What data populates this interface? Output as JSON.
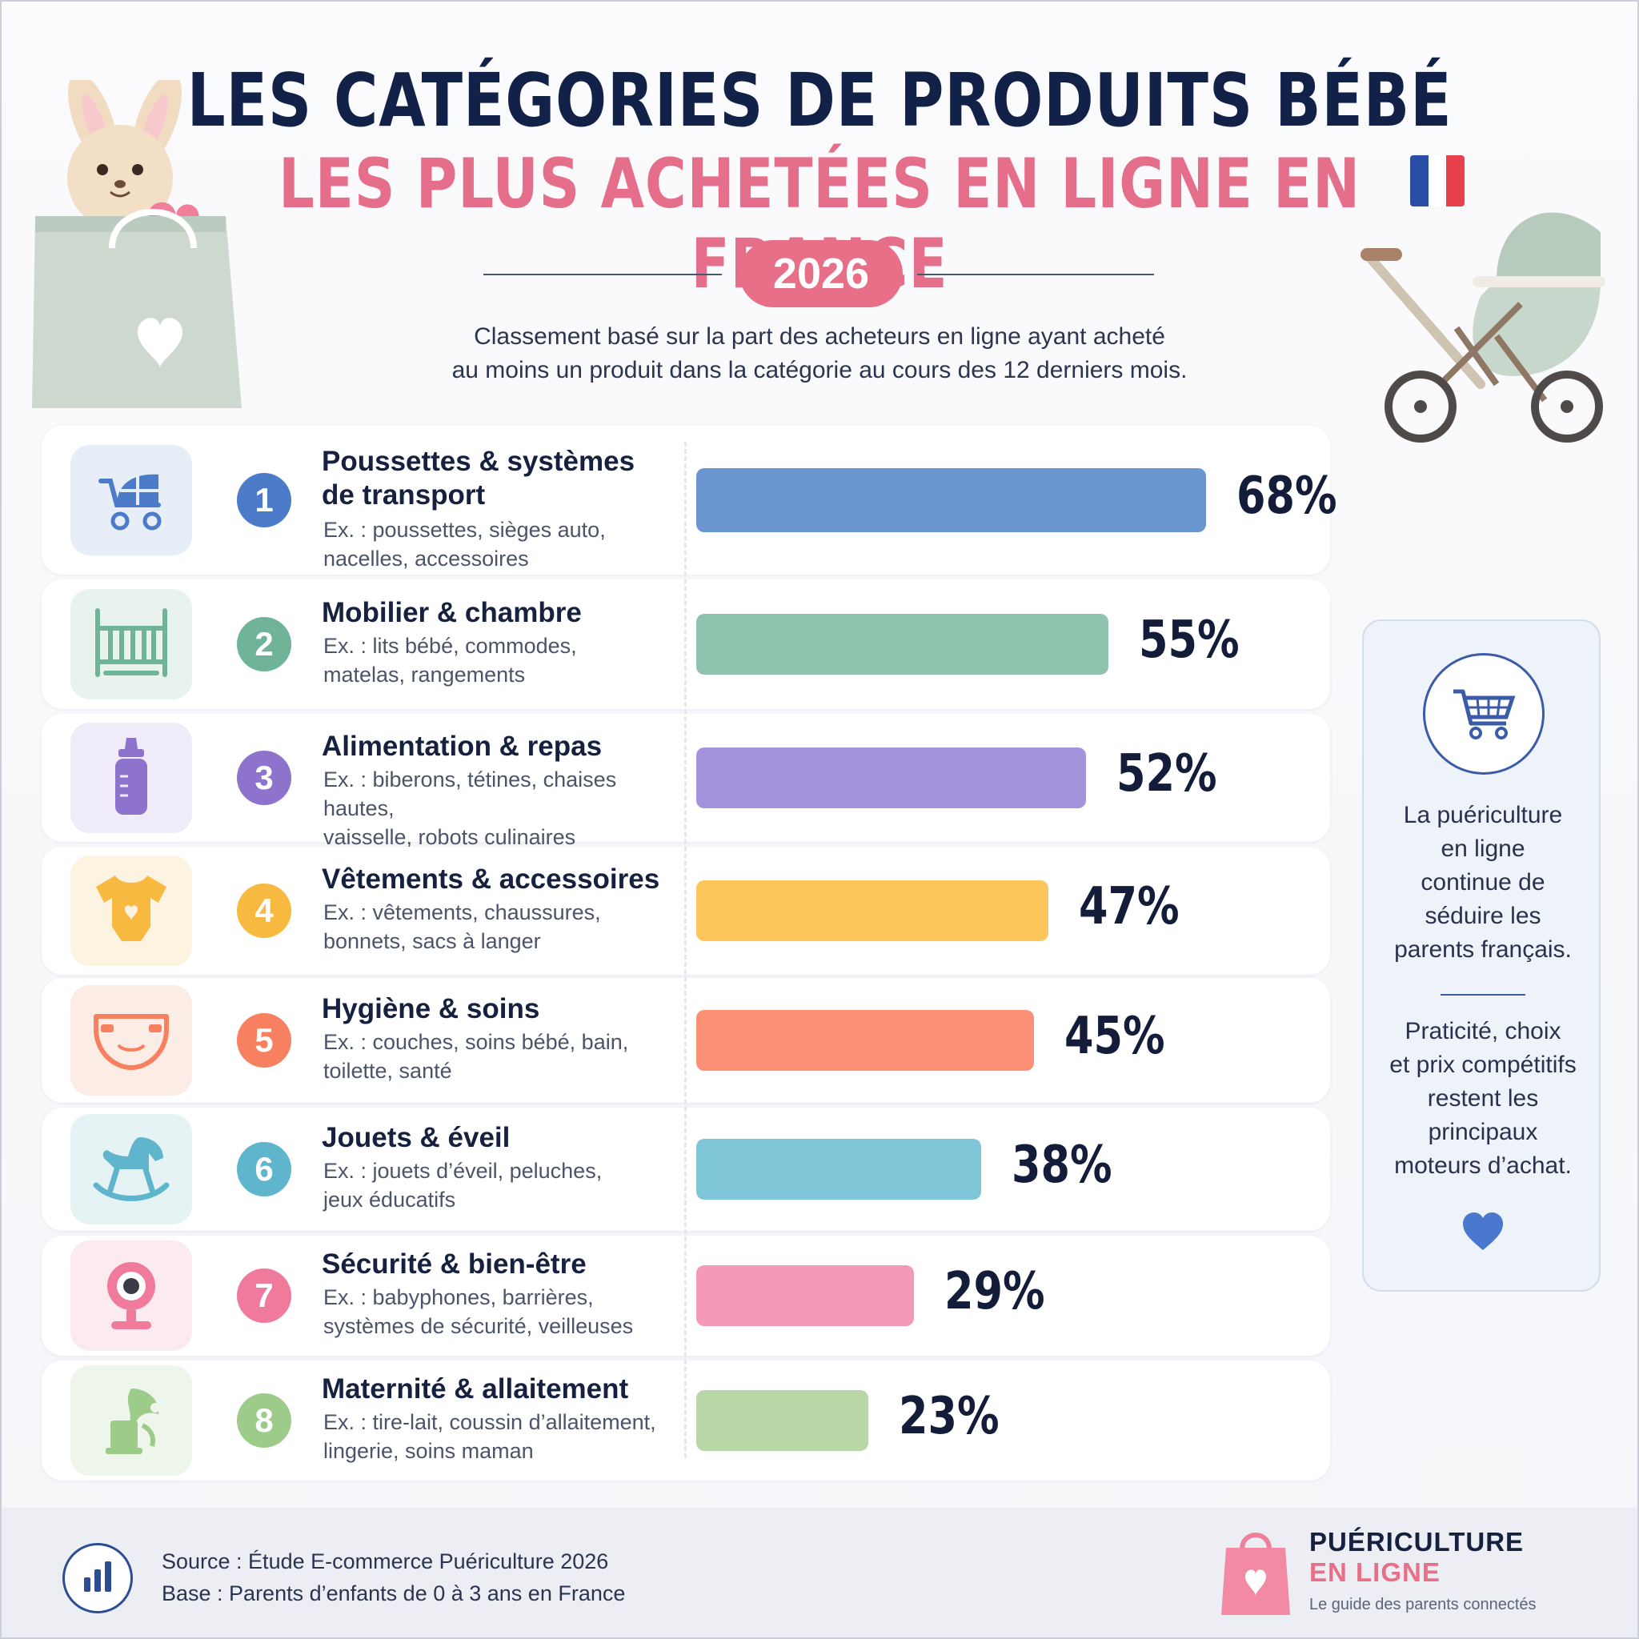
{
  "header": {
    "title_line1": "LES CATÉGORIES DE PRODUITS BÉBÉ",
    "title_line2": "LES PLUS ACHETÉES EN LIGNE EN FRANCE",
    "year": "2026",
    "subtitle_line1": "Classement basé sur la part des acheteurs en ligne ayant acheté",
    "subtitle_line2": "au moins un produit dans la catégorie au cours des 12 derniers mois."
  },
  "flag_colors": [
    "#2a4ea6",
    "#ffffff",
    "#e8414b"
  ],
  "chart_data": {
    "type": "bar",
    "orientation": "horizontal",
    "categories": [
      "Poussettes & systèmes de transport",
      "Mobilier & chambre",
      "Alimentation & repas",
      "Vêtements & accessoires",
      "Hygiène & soins",
      "Jouets & éveil",
      "Sécurité & bien-être",
      "Maternité & allaitement"
    ],
    "values": [
      68,
      55,
      52,
      47,
      45,
      38,
      29,
      23
    ],
    "value_labels": [
      "68%",
      "55%",
      "52%",
      "47%",
      "45%",
      "38%",
      "29%",
      "23%"
    ],
    "unit": "%"
  },
  "rows": [
    {
      "rank": "1",
      "name_l1": "Poussettes & systèmes",
      "name_l2": "de transport",
      "ex_l1": "Ex. : poussettes, sièges auto,",
      "ex_l2": "nacelles, accessoires",
      "icon": "stroller-icon",
      "color": "#6a95cf",
      "num_color": "#4b7bc9",
      "icon_bg": "#e7eef8"
    },
    {
      "rank": "2",
      "name_l1": "Mobilier & chambre",
      "name_l2": "",
      "ex_l1": "Ex. : lits bébé, commodes,",
      "ex_l2": "matelas, rangements",
      "icon": "crib-icon",
      "color": "#8ec4ae",
      "num_color": "#6fb499",
      "icon_bg": "#e8f3ee"
    },
    {
      "rank": "3",
      "name_l1": "Alimentation & repas",
      "name_l2": "",
      "ex_l1": "Ex. : biberons, tétines, chaises hautes,",
      "ex_l2": "vaisselle, robots culinaires",
      "icon": "baby-bottle-icon",
      "color": "#a493dc",
      "num_color": "#8d73cc",
      "icon_bg": "#efebf8"
    },
    {
      "rank": "4",
      "name_l1": "Vêtements & accessoires",
      "name_l2": "",
      "ex_l1": "Ex. : vêtements, chaussures,",
      "ex_l2": "bonnets, sacs à langer",
      "icon": "bodysuit-icon",
      "color": "#fcc65a",
      "num_color": "#f7b940",
      "icon_bg": "#fdf3e1"
    },
    {
      "rank": "5",
      "name_l1": "Hygiène & soins",
      "name_l2": "",
      "ex_l1": "Ex. : couches, soins bébé, bain,",
      "ex_l2": "toilette, santé",
      "icon": "diaper-icon",
      "color": "#fc9075",
      "num_color": "#f6805f",
      "icon_bg": "#fbece6"
    },
    {
      "rank": "6",
      "name_l1": "Jouets & éveil",
      "name_l2": "",
      "ex_l1": "Ex. : jouets d’éveil, peluches,",
      "ex_l2": "jeux éducatifs",
      "icon": "rocking-horse-icon",
      "color": "#7ec6d8",
      "num_color": "#5fb5cb",
      "icon_bg": "#e6f3f5"
    },
    {
      "rank": "7",
      "name_l1": "Sécurité & bien-être",
      "name_l2": "",
      "ex_l1": "Ex. : babyphones, barrières,",
      "ex_l2": "systèmes de sécurité, veilleuses",
      "icon": "baby-monitor-icon",
      "color": "#f49ab8",
      "num_color": "#ef7a9c",
      "icon_bg": "#fbeaf0"
    },
    {
      "rank": "8",
      "name_l1": "Maternité & allaitement",
      "name_l2": "",
      "ex_l1": "Ex. : tire-lait, coussin d’allaitement,",
      "ex_l2": "lingerie, soins maman",
      "icon": "breast-pump-icon",
      "color": "#b9d8a8",
      "num_color": "#9ccb8a",
      "icon_bg": "#eef5ea"
    }
  ],
  "side": {
    "text1": [
      "La puériculture",
      "en ligne",
      "continue de",
      "séduire les",
      "parents français."
    ],
    "text2": [
      "Praticité, choix",
      "et prix compétitifs",
      "restent les",
      "principaux",
      "moteurs d’achat."
    ],
    "icon": "shopping-cart-icon"
  },
  "footer": {
    "source": "Source : Étude E-commerce Puériculture 2026",
    "base": "Base : Parents d’enfants de 0 à 3 ans en France",
    "brand_line1": "PUÉRICULTURE",
    "brand_line2": "EN LIGNE",
    "brand_tagline": "Le guide des parents connectés",
    "brand_color1": "#16203f",
    "brand_color2": "#e86f88"
  }
}
